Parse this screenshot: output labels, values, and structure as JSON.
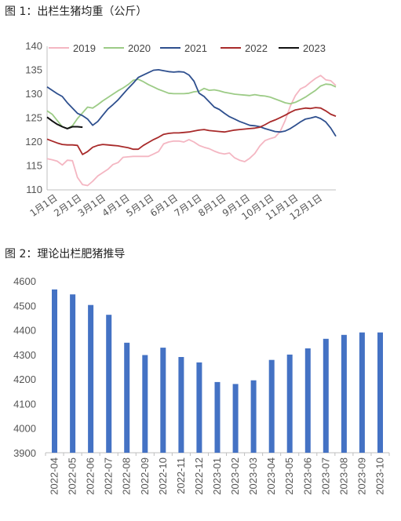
{
  "figure1": {
    "title": "图 1：出栏生猪均重（公斤）",
    "chart_data": {
      "type": "line",
      "x_ticks": [
        "1月1日",
        "2月1日",
        "3月1日",
        "4月1日",
        "5月1日",
        "6月1日",
        "7月1日",
        "8月1日",
        "9月1日",
        "10月1日",
        "11月1日",
        "12月1日"
      ],
      "ylim": [
        110,
        140
      ],
      "y_ticks": [
        110,
        115,
        120,
        125,
        130,
        135,
        140
      ],
      "x_unit": "week",
      "legend_position": "top",
      "series": [
        {
          "name": "2019",
          "color": "#F4B6C2",
          "values": [
            116.5,
            116.3,
            116.0,
            115.2,
            116.2,
            116.1,
            112.6,
            111.1,
            110.9,
            111.8,
            112.9,
            113.6,
            114.3,
            115.3,
            115.7,
            116.8,
            116.9,
            117.0,
            117.0,
            117.0,
            117.0,
            117.5,
            118.0,
            119.6,
            120.0,
            120.2,
            120.2,
            120.0,
            120.5,
            120.0,
            119.3,
            118.9,
            118.6,
            118.1,
            117.7,
            117.5,
            117.7,
            116.7,
            116.2,
            115.9,
            116.6,
            117.6,
            119.2,
            120.3,
            120.7,
            121.0,
            122.2,
            124.5,
            127.5,
            129.7,
            131.1,
            131.6,
            132.5,
            133.3,
            133.9,
            133.0,
            132.8,
            131.8
          ]
        },
        {
          "name": "2020",
          "color": "#9CCB86",
          "values": [
            126.5,
            125.8,
            124.5,
            123.2,
            122.8,
            123.4,
            124.9,
            126.1,
            127.3,
            127.1,
            127.8,
            128.6,
            129.3,
            130.0,
            130.7,
            131.3,
            132.0,
            132.9,
            133.1,
            132.6,
            132.0,
            131.5,
            131.0,
            130.6,
            130.2,
            130.1,
            130.1,
            130.1,
            130.2,
            130.5,
            130.6,
            131.2,
            130.8,
            130.9,
            130.7,
            130.4,
            130.2,
            130.0,
            129.9,
            129.8,
            129.7,
            129.9,
            129.7,
            129.6,
            129.4,
            129.0,
            128.6,
            128.2,
            128.0,
            128.3,
            128.8,
            129.4,
            130.1,
            130.8,
            131.7,
            132.1,
            132.0,
            131.5
          ]
        },
        {
          "name": "2021",
          "color": "#2E4F8E",
          "values": [
            131.5,
            130.8,
            130.1,
            129.5,
            128.2,
            127.1,
            126.0,
            125.5,
            124.8,
            123.5,
            124.3,
            125.6,
            126.9,
            127.8,
            128.8,
            130.0,
            131.2,
            132.3,
            133.5,
            134.0,
            134.5,
            135.0,
            135.1,
            134.9,
            134.7,
            134.6,
            134.7,
            134.6,
            134.0,
            132.7,
            130.2,
            129.5,
            128.4,
            127.3,
            126.8,
            126.0,
            125.3,
            124.8,
            124.3,
            123.9,
            123.5,
            123.4,
            123.2,
            122.8,
            122.5,
            122.2,
            122.1,
            122.3,
            122.8,
            123.5,
            124.2,
            124.8,
            125.0,
            125.3,
            124.9,
            124.2,
            122.9,
            121.2
          ]
        },
        {
          "name": "2022",
          "color": "#A82A2A",
          "values": [
            120.6,
            120.2,
            119.8,
            119.5,
            119.4,
            119.4,
            119.3,
            117.4,
            118.0,
            118.9,
            119.3,
            119.5,
            119.4,
            119.3,
            119.2,
            119.0,
            118.8,
            118.5,
            118.5,
            119.3,
            119.9,
            120.5,
            121.0,
            121.6,
            121.8,
            121.9,
            121.9,
            122.0,
            122.1,
            122.3,
            122.5,
            122.6,
            122.4,
            122.3,
            122.2,
            122.1,
            122.3,
            122.5,
            122.6,
            122.7,
            122.8,
            122.9,
            123.1,
            123.6,
            124.2,
            124.6,
            125.1,
            125.6,
            126.2,
            126.7,
            126.9,
            127.1,
            127.0,
            127.2,
            127.1,
            126.5,
            125.8,
            125.4
          ]
        },
        {
          "name": "2023",
          "color": "#111111",
          "values": [
            125.2,
            124.4,
            123.7,
            123.2,
            122.8,
            123.2,
            123.2,
            123.1
          ]
        }
      ]
    }
  },
  "figure2": {
    "title": "图 2：理论出栏肥猪推导",
    "chart_data": {
      "type": "bar",
      "categories": [
        "2022-04",
        "2022-05",
        "2022-06",
        "2022-07",
        "2022-08",
        "2022-09",
        "2022-10",
        "2022-11",
        "2022-12",
        "2023-01",
        "2023-02",
        "2023-03",
        "2023-04",
        "2023-05",
        "2023-06",
        "2023-07",
        "2023-08",
        "2023-09",
        "2023-10"
      ],
      "values": [
        4565,
        4545,
        4502,
        4462,
        4348,
        4298,
        4328,
        4290,
        4268,
        4188,
        4180,
        4195,
        4278,
        4300,
        4325,
        4364,
        4380,
        4390,
        4390
      ],
      "ylim": [
        3900,
        4600
      ],
      "y_ticks": [
        3900,
        4000,
        4100,
        4200,
        4300,
        4400,
        4500,
        4600
      ],
      "bar_color": "#4472C4",
      "grid": false
    }
  }
}
